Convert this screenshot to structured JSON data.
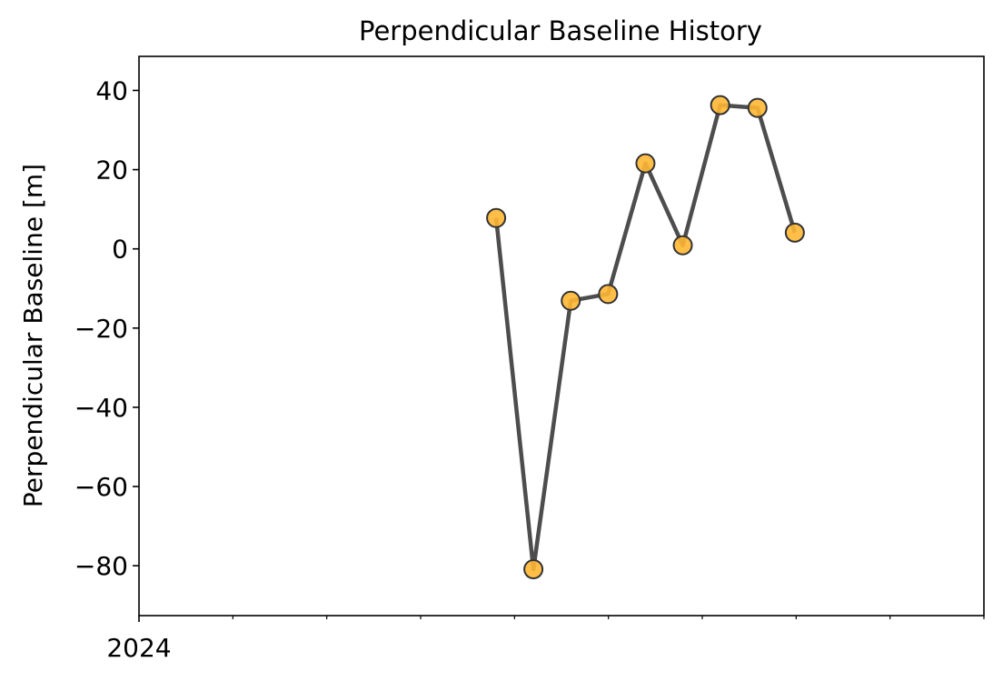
{
  "chart_data": {
    "type": "line",
    "title": "Perpendicular Baseline History",
    "xlabel": "",
    "ylabel": "Perpendicular Baseline [m]",
    "x_tick_labels": [
      "2024"
    ],
    "x_minor_tick_count": 9,
    "ylim": [
      -92.6,
      48.6
    ],
    "yticks": [
      40,
      20,
      0,
      -20,
      -40,
      -60,
      -80
    ],
    "ytick_labels": [
      "40",
      "20",
      "0",
      "−20",
      "−40",
      "−60",
      "−80"
    ],
    "xlim_fraction": [
      0,
      1
    ],
    "series": [
      {
        "x_fraction": [
          0.4227,
          0.4668,
          0.511,
          0.5552,
          0.5994,
          0.6436,
          0.6878,
          0.732,
          0.7762
        ],
        "values": [
          7.8,
          -80.9,
          -13.1,
          -11.4,
          21.6,
          0.9,
          36.3,
          35.6,
          4.1
        ]
      }
    ],
    "grid": false,
    "legend": "none",
    "colors": {
      "line": "#4d4d4d",
      "marker_fill": "#ffb733",
      "marker_edge": "#333333",
      "axes": "#000000"
    }
  }
}
